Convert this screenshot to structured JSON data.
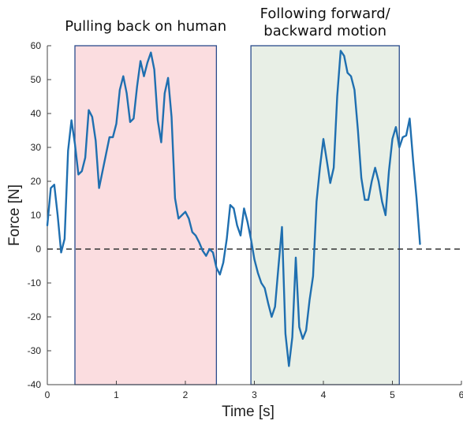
{
  "chart_data": {
    "type": "line",
    "title": "",
    "xlabel": "Time [s]",
    "ylabel": "Force [N]",
    "xlim": [
      0,
      6
    ],
    "ylim": [
      -40,
      60
    ],
    "xticks": [
      "0",
      "1",
      "2",
      "3",
      "4",
      "5",
      "6"
    ],
    "yticks": [
      "-40",
      "-30",
      "-20",
      "-10",
      "0",
      "10",
      "20",
      "30",
      "40",
      "50",
      "60"
    ],
    "grid": false,
    "reference_line": {
      "y": 0,
      "style": "dashed",
      "color": "#333333"
    },
    "series": [
      {
        "color": "#1f6fb0",
        "x": [
          0.0,
          0.05,
          0.1,
          0.15,
          0.2,
          0.25,
          0.3,
          0.35,
          0.4,
          0.45,
          0.5,
          0.55,
          0.6,
          0.65,
          0.7,
          0.75,
          0.8,
          0.85,
          0.9,
          0.95,
          1.0,
          1.05,
          1.1,
          1.15,
          1.2,
          1.25,
          1.3,
          1.35,
          1.4,
          1.45,
          1.5,
          1.55,
          1.6,
          1.65,
          1.7,
          1.75,
          1.8,
          1.85,
          1.9,
          1.95,
          2.0,
          2.05,
          2.1,
          2.15,
          2.2,
          2.25,
          2.3,
          2.35,
          2.4,
          2.45,
          2.5,
          2.55,
          2.6,
          2.65,
          2.7,
          2.75,
          2.8,
          2.85,
          2.9,
          2.95,
          3.0,
          3.05,
          3.1,
          3.15,
          3.2,
          3.25,
          3.3,
          3.35,
          3.4,
          3.45,
          3.5,
          3.55,
          3.6,
          3.65,
          3.7,
          3.75,
          3.8,
          3.85,
          3.9,
          3.95,
          4.0,
          4.05,
          4.1,
          4.15,
          4.2,
          4.25,
          4.3,
          4.35,
          4.4,
          4.45,
          4.5,
          4.55,
          4.6,
          4.65,
          4.7,
          4.75,
          4.8,
          4.85,
          4.9,
          4.95,
          5.0,
          5.05,
          5.1,
          5.15,
          5.2,
          5.25,
          5.3,
          5.35,
          5.4
        ],
        "y": [
          7.0,
          18.0,
          19.0,
          10.0,
          -1.0,
          3.0,
          29.0,
          38.0,
          31.0,
          22.0,
          23.0,
          27.0,
          41.0,
          39.0,
          32.0,
          18.0,
          23.0,
          28.0,
          33.0,
          33.0,
          37.0,
          47.0,
          51.0,
          46.0,
          37.5,
          38.5,
          48.0,
          55.5,
          51.0,
          55.0,
          58.0,
          53.0,
          38.0,
          31.5,
          46.0,
          50.5,
          39.0,
          15.0,
          9.0,
          10.0,
          11.0,
          9.0,
          5.0,
          4.0,
          2.0,
          -0.5,
          -2.0,
          0.0,
          -1.0,
          -5.5,
          -7.5,
          -4.0,
          3.0,
          13.0,
          12.0,
          7.0,
          4.0,
          12.0,
          8.0,
          3.0,
          -3.0,
          -7.0,
          -10.0,
          -11.5,
          -16.0,
          -20.0,
          -17.0,
          -5.0,
          6.5,
          -25.0,
          -34.5,
          -26.0,
          -2.5,
          -23.0,
          -26.5,
          -24.0,
          -15.0,
          -8.0,
          14.0,
          24.0,
          32.5,
          26.0,
          19.5,
          24.0,
          45.0,
          58.5,
          57.0,
          52.0,
          51.0,
          47.0,
          35.0,
          21.0,
          14.5,
          14.5,
          20.0,
          24.0,
          20.0,
          14.0,
          10.0,
          23.0,
          32.5,
          36.0,
          30.0,
          33.0,
          33.5,
          38.5,
          26.0,
          15.0,
          1.5
        ]
      }
    ],
    "regions": [
      {
        "x_start": 0.4,
        "x_end": 2.45,
        "color": "#fbdde0",
        "label": [
          "Pulling back on human"
        ]
      },
      {
        "x_start": 2.95,
        "x_end": 5.1,
        "color": "#e8efe6",
        "label": [
          "Following forward/",
          "backward motion"
        ]
      }
    ]
  }
}
